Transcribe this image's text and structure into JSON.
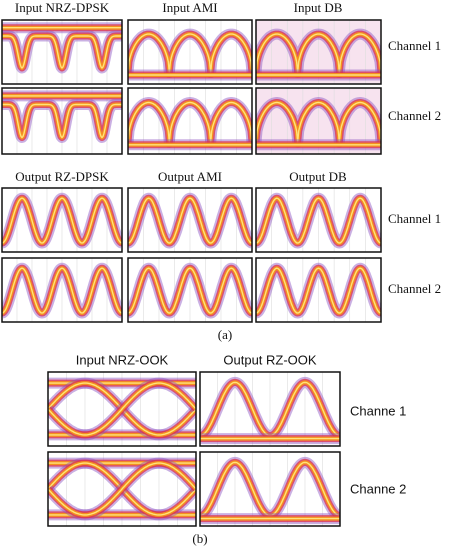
{
  "part_a": {
    "input_labels": [
      "Input NRZ-DPSK",
      "Input AMI",
      "Input DB"
    ],
    "output_labels": [
      "Output RZ-DPSK",
      "Output AMI",
      "Output DB"
    ],
    "channel_labels": [
      "Channel 1",
      "Channel 2"
    ],
    "caption": "(a)"
  },
  "part_b": {
    "column_labels": [
      "Input NRZ-OOK",
      "Output RZ-OOK"
    ],
    "channel_labels": [
      "Channe 1",
      "Channe 2"
    ],
    "caption": "(b)"
  }
}
